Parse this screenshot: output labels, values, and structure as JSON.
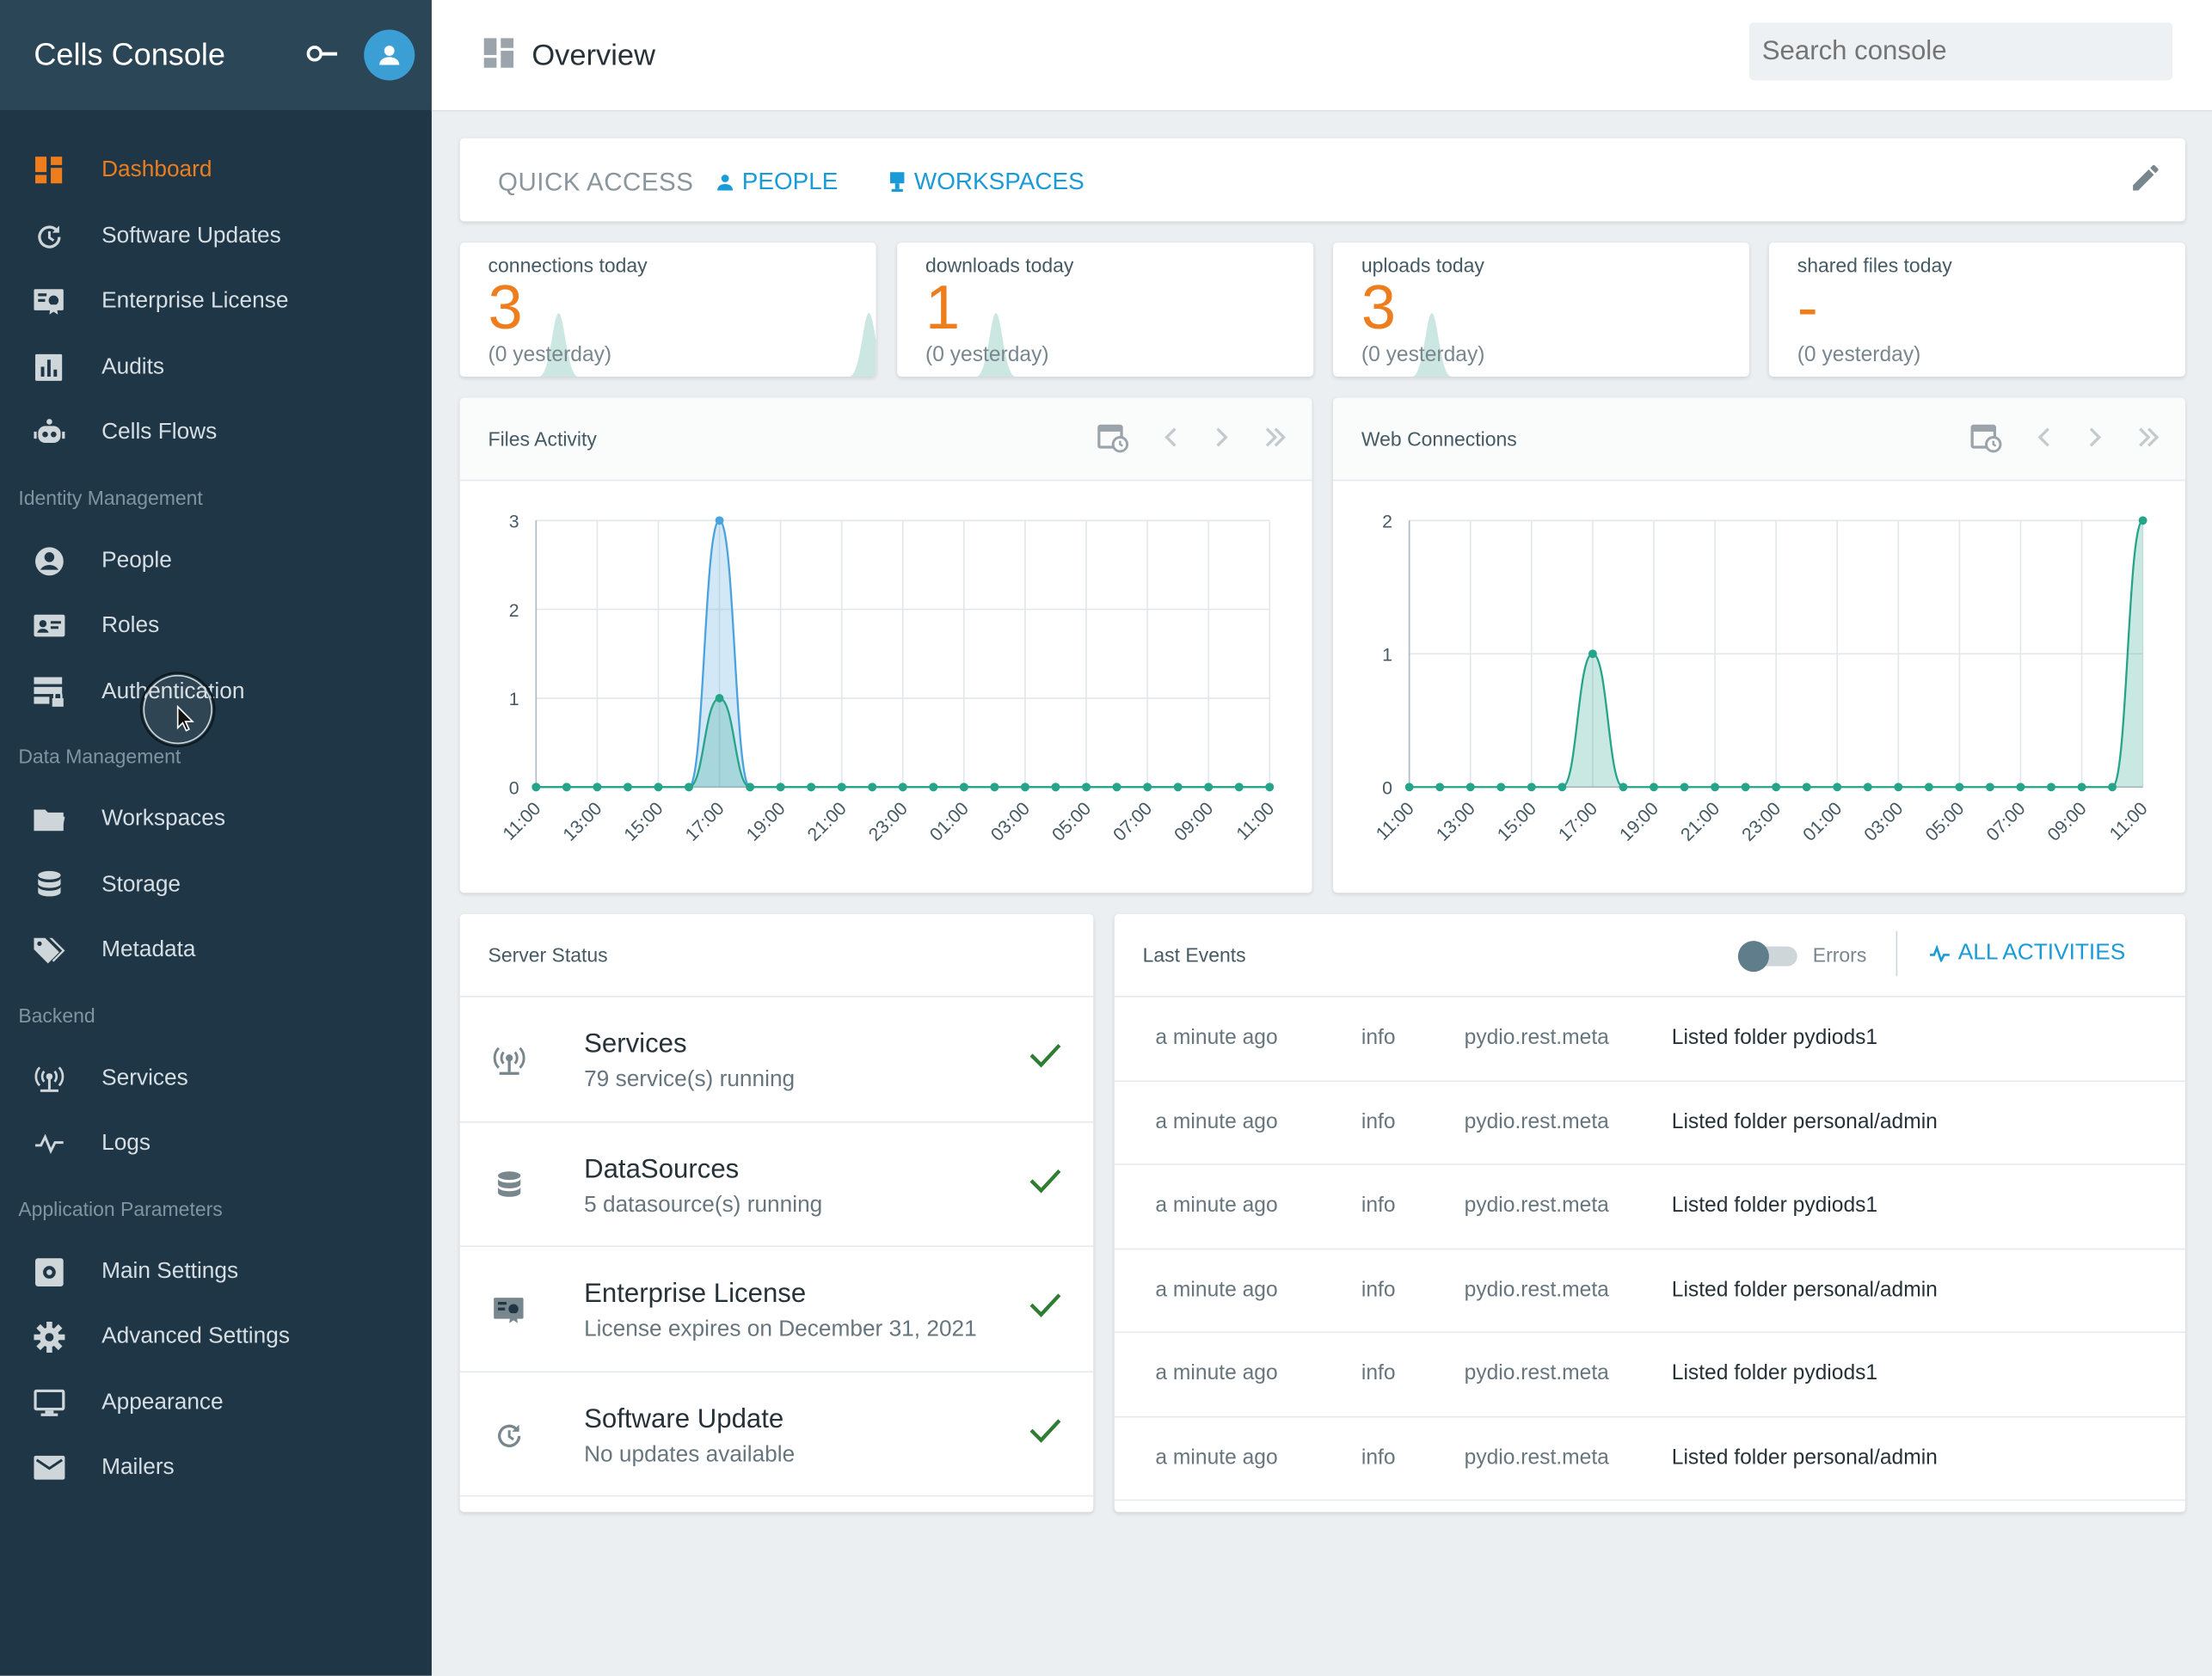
{
  "app": {
    "title": "Cells Console"
  },
  "sidebar": {
    "items_main": [
      {
        "label": "Dashboard",
        "icon": "dashboard-icon",
        "active": true
      },
      {
        "label": "Software Updates",
        "icon": "update-icon"
      },
      {
        "label": "Enterprise License",
        "icon": "certificate-icon"
      },
      {
        "label": "Audits",
        "icon": "chart-icon"
      },
      {
        "label": "Cells Flows",
        "icon": "robot-icon"
      }
    ],
    "section_identity": "Identity Management",
    "items_identity": [
      {
        "label": "People",
        "icon": "account-icon"
      },
      {
        "label": "Roles",
        "icon": "id-card-icon"
      },
      {
        "label": "Authentication",
        "icon": "server-lock-icon"
      }
    ],
    "section_data": "Data Management",
    "items_data": [
      {
        "label": "Workspaces",
        "icon": "folder-icon"
      },
      {
        "label": "Storage",
        "icon": "database-icon"
      },
      {
        "label": "Metadata",
        "icon": "tag-icon"
      }
    ],
    "section_backend": "Backend",
    "items_backend": [
      {
        "label": "Services",
        "icon": "antenna-icon"
      },
      {
        "label": "Logs",
        "icon": "pulse-icon"
      }
    ],
    "section_app": "Application Parameters",
    "items_app": [
      {
        "label": "Main Settings",
        "icon": "settings-box-icon"
      },
      {
        "label": "Advanced Settings",
        "icon": "gear-icon"
      },
      {
        "label": "Appearance",
        "icon": "monitor-icon"
      },
      {
        "label": "Mailers",
        "icon": "mail-icon"
      }
    ]
  },
  "topbar": {
    "title": "Overview",
    "search_placeholder": "Search console"
  },
  "quick_access": {
    "label": "QUICK ACCESS",
    "people": "PEOPLE",
    "workspaces": "WORKSPACES"
  },
  "stats": [
    {
      "label": "connections today",
      "value": "3",
      "sub": "(0 yesterday)"
    },
    {
      "label": "downloads today",
      "value": "1",
      "sub": "(0 yesterday)"
    },
    {
      "label": "uploads today",
      "value": "3",
      "sub": "(0 yesterday)"
    },
    {
      "label": "shared files today",
      "value": "-",
      "sub": "(0 yesterday)"
    }
  ],
  "files_activity": {
    "title": "Files Activity"
  },
  "web_connections": {
    "title": "Web Connections"
  },
  "chart_data": [
    {
      "type": "area",
      "title": "Files Activity",
      "x_ticks": [
        "11:00",
        "13:00",
        "15:00",
        "17:00",
        "19:00",
        "21:00",
        "23:00",
        "01:00",
        "03:00",
        "05:00",
        "07:00",
        "09:00",
        "11:00"
      ],
      "ylim": [
        0,
        3
      ],
      "y_ticks": [
        0,
        1,
        2,
        3
      ],
      "series": [
        {
          "color": "#4aa3df",
          "values": [
            0,
            0,
            0,
            0,
            0,
            0,
            3,
            0,
            0,
            0,
            0,
            0,
            0,
            0,
            0,
            0,
            0,
            0,
            0,
            0,
            0,
            0,
            0,
            0,
            0
          ]
        },
        {
          "color": "#26a48a",
          "values": [
            0,
            0,
            0,
            0,
            0,
            0,
            1,
            0,
            0,
            0,
            0,
            0,
            0,
            0,
            0,
            0,
            0,
            0,
            0,
            0,
            0,
            0,
            0,
            0,
            0
          ]
        }
      ]
    },
    {
      "type": "area",
      "title": "Web Connections",
      "x_ticks": [
        "11:00",
        "13:00",
        "15:00",
        "17:00",
        "19:00",
        "21:00",
        "23:00",
        "01:00",
        "03:00",
        "05:00",
        "07:00",
        "09:00",
        "11:00"
      ],
      "ylim": [
        0,
        2
      ],
      "y_ticks": [
        0,
        1,
        2
      ],
      "series": [
        {
          "color": "#26a48a",
          "values": [
            0,
            0,
            0,
            0,
            0,
            0,
            1,
            0,
            0,
            0,
            0,
            0,
            0,
            0,
            0,
            0,
            0,
            0,
            0,
            0,
            0,
            0,
            0,
            0,
            2
          ]
        }
      ]
    }
  ],
  "server_status": {
    "title": "Server Status",
    "rows": [
      {
        "name": "Services",
        "detail": "79 service(s) running",
        "icon": "antenna-icon"
      },
      {
        "name": "DataSources",
        "detail": "5 datasource(s) running",
        "icon": "database-icon"
      },
      {
        "name": "Enterprise License",
        "detail": "License expires on December 31, 2021",
        "icon": "certificate-icon"
      },
      {
        "name": "Software Update",
        "detail": "No updates available",
        "icon": "update-icon"
      }
    ]
  },
  "last_events": {
    "title": "Last Events",
    "errors_label": "Errors",
    "all_label": "ALL ACTIVITIES",
    "rows": [
      {
        "time": "a minute ago",
        "level": "info",
        "service": "pydio.rest.meta",
        "message": "Listed folder pydiods1"
      },
      {
        "time": "a minute ago",
        "level": "info",
        "service": "pydio.rest.meta",
        "message": "Listed folder personal/admin"
      },
      {
        "time": "a minute ago",
        "level": "info",
        "service": "pydio.rest.meta",
        "message": "Listed folder pydiods1"
      },
      {
        "time": "a minute ago",
        "level": "info",
        "service": "pydio.rest.meta",
        "message": "Listed folder personal/admin"
      },
      {
        "time": "a minute ago",
        "level": "info",
        "service": "pydio.rest.meta",
        "message": "Listed folder pydiods1"
      },
      {
        "time": "a minute ago",
        "level": "info",
        "service": "pydio.rest.meta",
        "message": "Listed folder personal/admin"
      }
    ]
  },
  "colors": {
    "accent": "#ee7d1e",
    "link": "#1a9bd7",
    "ok": "#2e7d32",
    "sidebar": "#1e3645"
  }
}
